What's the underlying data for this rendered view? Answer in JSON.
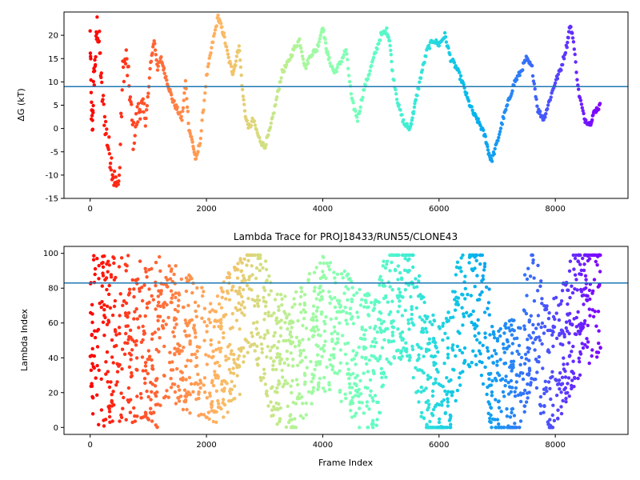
{
  "chart_data": [
    {
      "type": "scatter",
      "title": "",
      "xlabel": "",
      "ylabel": "ΔG (kT)",
      "xlim": [
        -450,
        9250
      ],
      "ylim": [
        -15,
        25
      ],
      "xticks": [
        0,
        2000,
        4000,
        6000,
        8000
      ],
      "yticks": [
        -15,
        -10,
        -5,
        0,
        5,
        10,
        15,
        20
      ],
      "hline": 9,
      "grid": false,
      "legend": "none",
      "color_by": "frame index (rainbow colormap, red at start to violet at end)",
      "series": [
        {
          "x": [
            0,
            20,
            40,
            60,
            90,
            120,
            160,
            200,
            250,
            300,
            350,
            400,
            450,
            500,
            560,
            620,
            680,
            740,
            800,
            860,
            920,
            980,
            1040,
            1100,
            1160,
            1220,
            1280,
            1350,
            1420,
            1500,
            1580,
            1640,
            1700,
            1760,
            1820,
            1900,
            2000,
            2100,
            2200,
            2250,
            2300,
            2380,
            2450,
            2500,
            2560,
            2620,
            2680,
            2740,
            2800,
            2900,
            3000,
            3100,
            3200,
            3300,
            3400,
            3500,
            3600,
            3700,
            3800,
            3900,
            4000,
            4050,
            4100,
            4200,
            4300,
            4400,
            4500,
            4600,
            4700,
            4800,
            4900,
            5000,
            5100,
            5150,
            5200,
            5300,
            5400,
            5500,
            5550,
            5600,
            5700,
            5800,
            5900,
            6000,
            6100,
            6200,
            6300,
            6400,
            6500,
            6600,
            6700,
            6800,
            6850,
            6900,
            7000,
            7100,
            7200,
            7300,
            7400,
            7500,
            7600,
            7700,
            7800,
            7900,
            8000,
            8100,
            8200,
            8250,
            8300,
            8400,
            8500,
            8600,
            8650,
            8700,
            8780
          ],
          "y": [
            20,
            4,
            0,
            10,
            15,
            22,
            18,
            8,
            2,
            -3,
            -6,
            -10,
            -13,
            -11,
            12,
            15,
            8,
            -2,
            2,
            5,
            3,
            4,
            14,
            19,
            13,
            15,
            12,
            9,
            6,
            4,
            2,
            10,
            0,
            -3,
            -7,
            -2,
            11,
            18,
            24,
            22,
            20,
            15,
            12,
            14,
            18,
            8,
            2,
            0,
            2,
            -2,
            -4,
            0,
            6,
            12,
            14,
            17,
            19,
            13,
            16,
            17,
            22,
            18,
            15,
            12,
            14,
            17,
            6,
            2,
            8,
            12,
            16,
            20,
            21,
            19,
            12,
            5,
            1,
            0,
            3,
            6,
            12,
            17,
            19,
            18,
            20,
            15,
            13,
            10,
            6,
            3,
            1,
            -2,
            -5,
            -7,
            -3,
            2,
            6,
            10,
            12,
            15,
            13,
            4,
            2,
            6,
            10,
            13,
            18,
            22,
            20,
            8,
            2,
            1,
            3,
            4,
            5
          ]
        }
      ]
    },
    {
      "type": "scatter",
      "title": "Lambda Trace for PROJ18433/RUN55/CLONE43",
      "xlabel": "Frame Index",
      "ylabel": "Lambda Index",
      "xlim": [
        -450,
        9250
      ],
      "ylim": [
        -4,
        104
      ],
      "xticks": [
        0,
        2000,
        4000,
        6000,
        8000
      ],
      "yticks": [
        0,
        20,
        40,
        60,
        80,
        100
      ],
      "hline": 83,
      "grid": false,
      "legend": "none",
      "color_by": "frame index (rainbow colormap, red at start to violet at end)",
      "series": [
        {
          "x_range": [
            0,
            8780
          ],
          "y_range": [
            0,
            99
          ],
          "envelope_x": [
            0,
            300,
            700,
            1000,
            1400,
            1800,
            2200,
            2600,
            2800,
            3100,
            3400,
            3700,
            4000,
            4300,
            4600,
            4900,
            5200,
            5500,
            5800,
            6100,
            6400,
            6700,
            7000,
            7300,
            7600,
            7900,
            8200,
            8500,
            8780
          ],
          "envelope_center": [
            50,
            50,
            50,
            45,
            55,
            45,
            40,
            60,
            85,
            45,
            35,
            45,
            60,
            55,
            40,
            35,
            80,
            75,
            30,
            20,
            70,
            75,
            15,
            25,
            65,
            30,
            55,
            75,
            80
          ]
        }
      ]
    }
  ]
}
